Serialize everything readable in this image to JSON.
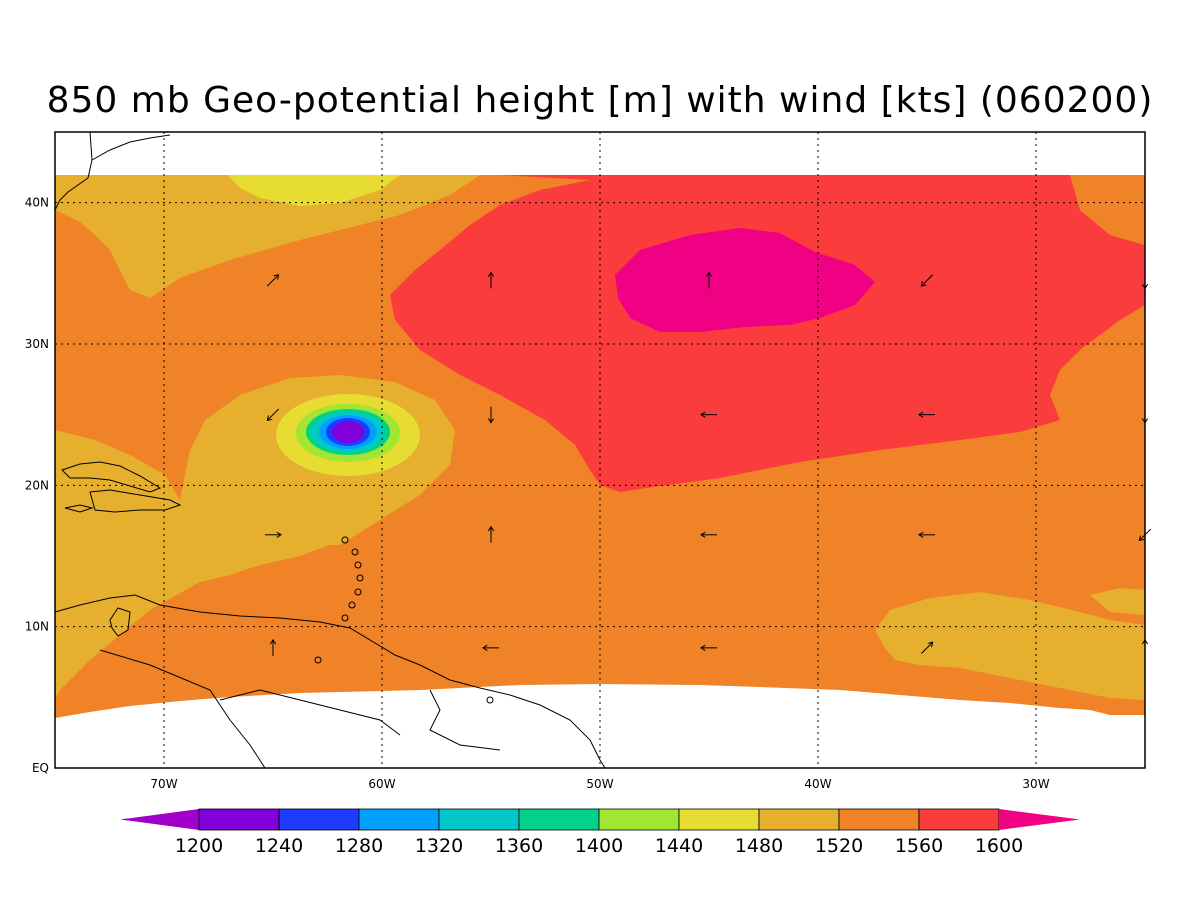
{
  "title": "850 mb Geo-potential height [m] with wind [kts] (060200)",
  "axes": {
    "x_ticks": [
      {
        "lon": -70,
        "label": "70W"
      },
      {
        "lon": -60,
        "label": "60W"
      },
      {
        "lon": -50,
        "label": "50W"
      },
      {
        "lon": -40,
        "label": "40W"
      },
      {
        "lon": -30,
        "label": "30W"
      }
    ],
    "y_ticks": [
      {
        "lat": 0,
        "label": "EQ"
      },
      {
        "lat": 10,
        "label": "10N"
      },
      {
        "lat": 20,
        "label": "20N"
      },
      {
        "lat": 30,
        "label": "30N"
      },
      {
        "lat": 40,
        "label": "40N"
      }
    ],
    "lon_range": [
      -75,
      -25
    ],
    "lat_range": [
      0,
      45
    ],
    "grid": "dotted"
  },
  "colorbar": {
    "levels": [
      "1200",
      "1240",
      "1280",
      "1320",
      "1360",
      "1400",
      "1440",
      "1480",
      "1520",
      "1560",
      "1600"
    ],
    "colors": [
      "#a000c8",
      "#8200dc",
      "#1e3cff",
      "#00a0ff",
      "#00c8c8",
      "#00d28c",
      "#a0e632",
      "#e6dc32",
      "#e6af2d",
      "#f08228",
      "#fa3c3c",
      "#f00082"
    ]
  },
  "contour_fills": {
    "c1480": "#e6dc32",
    "c1520": "#e6af2d",
    "c1560": "#f08228",
    "c1600": "#fa3c3c",
    "c1640": "#f00082",
    "low_levels": [
      "#e6dc32",
      "#a0e632",
      "#00d28c",
      "#00c8c8",
      "#00a0ff",
      "#1e3cff",
      "#8200dc"
    ]
  },
  "wind_vectors": [
    {
      "lon": -65,
      "lat": 34.5,
      "u": 1,
      "v": 1
    },
    {
      "lon": -55,
      "lat": 34.5,
      "u": 0,
      "v": 1
    },
    {
      "lon": -45,
      "lat": 34.5,
      "u": 0,
      "v": 1
    },
    {
      "lon": -35,
      "lat": 34.5,
      "u": -1,
      "v": -1
    },
    {
      "lon": -25,
      "lat": 34.5,
      "u": 0,
      "v": -1
    },
    {
      "lon": -65,
      "lat": 25,
      "u": -1,
      "v": -1
    },
    {
      "lon": -55,
      "lat": 25,
      "u": 0,
      "v": -1
    },
    {
      "lon": -45,
      "lat": 25,
      "u": -1,
      "v": 0
    },
    {
      "lon": -35,
      "lat": 25,
      "u": -1,
      "v": 0
    },
    {
      "lon": -25,
      "lat": 25,
      "u": 0,
      "v": -1
    },
    {
      "lon": -65,
      "lat": 16.5,
      "u": 1,
      "v": 0
    },
    {
      "lon": -55,
      "lat": 16.5,
      "u": 0,
      "v": 1
    },
    {
      "lon": -45,
      "lat": 16.5,
      "u": -1,
      "v": 0
    },
    {
      "lon": -35,
      "lat": 16.5,
      "u": -1,
      "v": 0
    },
    {
      "lon": -25,
      "lat": 16.5,
      "u": -1,
      "v": -1
    },
    {
      "lon": -65,
      "lat": 8.5,
      "u": 0,
      "v": 1
    },
    {
      "lon": -55,
      "lat": 8.5,
      "u": -1,
      "v": 0
    },
    {
      "lon": -45,
      "lat": 8.5,
      "u": -1,
      "v": 0
    },
    {
      "lon": -35,
      "lat": 8.5,
      "u": 1,
      "v": 1
    },
    {
      "lon": -25,
      "lat": 8.5,
      "u": 0,
      "v": 1
    }
  ]
}
